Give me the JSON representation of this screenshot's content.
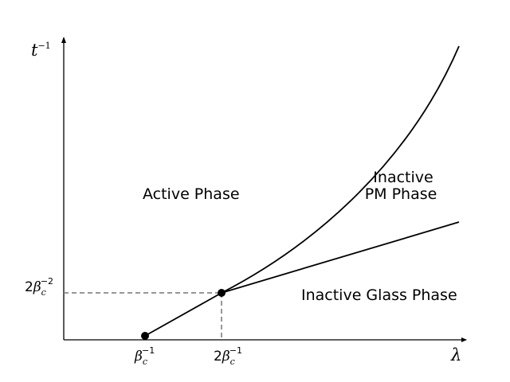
{
  "axes": {
    "y_label": {
      "base": "t",
      "exp": "−1"
    },
    "x_label": "λ"
  },
  "ticks": {
    "x1": {
      "coef": "",
      "greek": "β",
      "sub": "c",
      "exp": "−1"
    },
    "x2": {
      "coef": "2",
      "greek": "β",
      "sub": "c",
      "exp": "−1"
    },
    "y1": {
      "coef": "2",
      "greek": "β",
      "sub": "c",
      "exp": "−2"
    }
  },
  "regions": {
    "active": "Active Phase",
    "inactive_pm_line1": "Inactive",
    "inactive_pm_line2": "PM Phase",
    "inactive_glass": "Inactive Glass Phase"
  }
}
